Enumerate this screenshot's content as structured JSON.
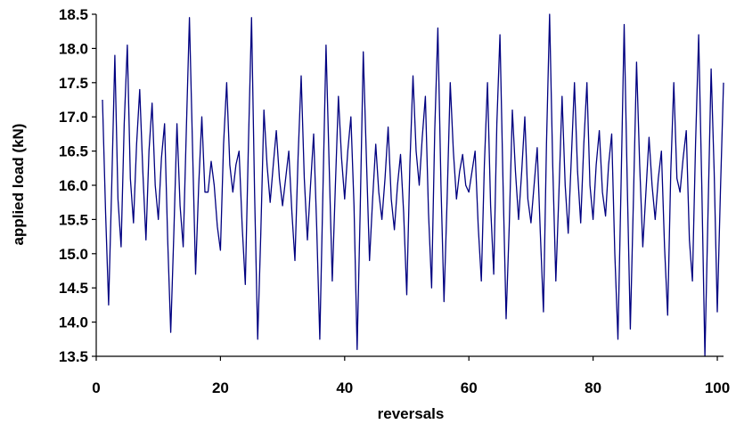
{
  "chart_data": {
    "type": "line",
    "title": "",
    "xlabel": "reversals",
    "ylabel": "applied load (kN)",
    "xlim": [
      0,
      101
    ],
    "ylim": [
      13.5,
      18.5
    ],
    "x_ticks": [
      0,
      20,
      40,
      60,
      80,
      100
    ],
    "x_tick_labels": [
      "0",
      "20",
      "40",
      "60",
      "80",
      "100"
    ],
    "y_ticks": [
      13.5,
      14.0,
      14.5,
      15.0,
      15.5,
      16.0,
      16.5,
      17.0,
      17.5,
      18.0,
      18.5
    ],
    "y_tick_labels": [
      "13.5",
      "14.0",
      "14.5",
      "15.0",
      "15.5",
      "16.0",
      "16.5",
      "17.0",
      "17.5",
      "18.0",
      "18.5"
    ],
    "grid": false,
    "legend": "none",
    "line_color": "#000080",
    "series": [
      {
        "values": [
          [
            1.0,
            17.25
          ],
          [
            1.5,
            15.6
          ],
          [
            2.0,
            14.25
          ],
          [
            2.5,
            16.0
          ],
          [
            3.0,
            17.9
          ],
          [
            3.5,
            15.8
          ],
          [
            4.0,
            15.1
          ],
          [
            4.5,
            16.9
          ],
          [
            5.0,
            18.05
          ],
          [
            5.5,
            16.1
          ],
          [
            6.0,
            15.45
          ],
          [
            6.5,
            16.6
          ],
          [
            7.0,
            17.4
          ],
          [
            7.5,
            16.2
          ],
          [
            8.0,
            15.2
          ],
          [
            8.5,
            16.5
          ],
          [
            9.0,
            17.2
          ],
          [
            9.5,
            16.0
          ],
          [
            10.0,
            15.5
          ],
          [
            10.5,
            16.4
          ],
          [
            11.0,
            16.9
          ],
          [
            11.5,
            15.2
          ],
          [
            12.0,
            13.85
          ],
          [
            12.5,
            15.3
          ],
          [
            13.0,
            16.9
          ],
          [
            13.5,
            15.7
          ],
          [
            14.0,
            15.1
          ],
          [
            14.5,
            16.8
          ],
          [
            15.0,
            18.45
          ],
          [
            15.5,
            16.6
          ],
          [
            16.0,
            14.7
          ],
          [
            16.5,
            16.0
          ],
          [
            17.0,
            17.0
          ],
          [
            17.5,
            15.9
          ],
          [
            18.0,
            15.9
          ],
          [
            18.5,
            16.35
          ],
          [
            19.0,
            16.0
          ],
          [
            19.5,
            15.4
          ],
          [
            20.0,
            15.05
          ],
          [
            20.5,
            16.6
          ],
          [
            21.0,
            17.5
          ],
          [
            21.5,
            16.3
          ],
          [
            22.0,
            15.9
          ],
          [
            22.5,
            16.3
          ],
          [
            23.0,
            16.5
          ],
          [
            23.5,
            15.4
          ],
          [
            24.0,
            14.55
          ],
          [
            24.5,
            16.6
          ],
          [
            25.0,
            18.45
          ],
          [
            25.5,
            15.9
          ],
          [
            26.0,
            13.75
          ],
          [
            26.5,
            15.3
          ],
          [
            27.0,
            17.1
          ],
          [
            27.5,
            16.3
          ],
          [
            28.0,
            15.75
          ],
          [
            28.5,
            16.3
          ],
          [
            29.0,
            16.8
          ],
          [
            29.5,
            16.1
          ],
          [
            30.0,
            15.7
          ],
          [
            30.5,
            16.1
          ],
          [
            31.0,
            16.5
          ],
          [
            31.5,
            15.6
          ],
          [
            32.0,
            14.9
          ],
          [
            32.5,
            16.4
          ],
          [
            33.0,
            17.6
          ],
          [
            33.5,
            16.1
          ],
          [
            34.0,
            15.2
          ],
          [
            34.5,
            16.0
          ],
          [
            35.0,
            16.75
          ],
          [
            35.5,
            15.4
          ],
          [
            36.0,
            13.75
          ],
          [
            36.5,
            15.9
          ],
          [
            37.0,
            18.05
          ],
          [
            37.5,
            16.3
          ],
          [
            38.0,
            14.6
          ],
          [
            38.5,
            16.0
          ],
          [
            39.0,
            17.3
          ],
          [
            39.5,
            16.4
          ],
          [
            40.0,
            15.8
          ],
          [
            40.5,
            16.5
          ],
          [
            41.0,
            17.0
          ],
          [
            41.5,
            15.7
          ],
          [
            42.0,
            13.6
          ],
          [
            42.5,
            15.6
          ],
          [
            43.0,
            17.95
          ],
          [
            43.5,
            16.4
          ],
          [
            44.0,
            14.9
          ],
          [
            44.5,
            15.8
          ],
          [
            45.0,
            16.6
          ],
          [
            45.5,
            15.9
          ],
          [
            46.0,
            15.5
          ],
          [
            46.5,
            16.1
          ],
          [
            47.0,
            16.85
          ],
          [
            47.5,
            15.8
          ],
          [
            48.0,
            15.35
          ],
          [
            48.5,
            16.0
          ],
          [
            49.0,
            16.45
          ],
          [
            49.5,
            15.6
          ],
          [
            50.0,
            14.4
          ],
          [
            50.5,
            16.3
          ],
          [
            51.0,
            17.6
          ],
          [
            51.5,
            16.5
          ],
          [
            52.0,
            16.0
          ],
          [
            52.5,
            16.7
          ],
          [
            53.0,
            17.3
          ],
          [
            53.5,
            15.6
          ],
          [
            54.0,
            14.5
          ],
          [
            54.5,
            16.8
          ],
          [
            55.0,
            18.3
          ],
          [
            55.5,
            16.0
          ],
          [
            56.0,
            14.3
          ],
          [
            56.5,
            15.8
          ],
          [
            57.0,
            17.5
          ],
          [
            57.5,
            16.5
          ],
          [
            58.0,
            15.8
          ],
          [
            58.5,
            16.2
          ],
          [
            59.0,
            16.45
          ],
          [
            59.5,
            16.0
          ],
          [
            60.0,
            15.9
          ],
          [
            60.5,
            16.2
          ],
          [
            61.0,
            16.5
          ],
          [
            61.5,
            15.4
          ],
          [
            62.0,
            14.6
          ],
          [
            62.5,
            16.3
          ],
          [
            63.0,
            17.5
          ],
          [
            63.5,
            15.7
          ],
          [
            64.0,
            14.7
          ],
          [
            64.5,
            16.9
          ],
          [
            65.0,
            18.2
          ],
          [
            65.5,
            16.0
          ],
          [
            66.0,
            14.05
          ],
          [
            66.5,
            15.4
          ],
          [
            67.0,
            17.1
          ],
          [
            67.5,
            16.2
          ],
          [
            68.0,
            15.5
          ],
          [
            68.5,
            16.2
          ],
          [
            69.0,
            17.0
          ],
          [
            69.5,
            15.8
          ],
          [
            70.0,
            15.45
          ],
          [
            70.5,
            16.0
          ],
          [
            71.0,
            16.55
          ],
          [
            71.5,
            15.3
          ],
          [
            72.0,
            14.15
          ],
          [
            72.5,
            16.6
          ],
          [
            73.0,
            18.5
          ],
          [
            73.5,
            16.3
          ],
          [
            74.0,
            14.6
          ],
          [
            74.5,
            15.9
          ],
          [
            75.0,
            17.3
          ],
          [
            75.5,
            16.0
          ],
          [
            76.0,
            15.3
          ],
          [
            76.5,
            16.4
          ],
          [
            77.0,
            17.5
          ],
          [
            77.5,
            16.2
          ],
          [
            78.0,
            15.45
          ],
          [
            78.5,
            16.6
          ],
          [
            79.0,
            17.5
          ],
          [
            79.5,
            16.0
          ],
          [
            80.0,
            15.5
          ],
          [
            80.5,
            16.3
          ],
          [
            81.0,
            16.8
          ],
          [
            81.5,
            15.9
          ],
          [
            82.0,
            15.55
          ],
          [
            82.5,
            16.3
          ],
          [
            83.0,
            16.75
          ],
          [
            83.5,
            15.0
          ],
          [
            84.0,
            13.75
          ],
          [
            84.5,
            16.0
          ],
          [
            85.0,
            18.35
          ],
          [
            85.5,
            16.0
          ],
          [
            86.0,
            13.9
          ],
          [
            86.5,
            15.8
          ],
          [
            87.0,
            17.8
          ],
          [
            87.5,
            16.3
          ],
          [
            88.0,
            15.1
          ],
          [
            88.5,
            15.9
          ],
          [
            89.0,
            16.7
          ],
          [
            89.5,
            16.0
          ],
          [
            90.0,
            15.5
          ],
          [
            90.5,
            16.1
          ],
          [
            91.0,
            16.5
          ],
          [
            91.5,
            15.1
          ],
          [
            92.0,
            14.1
          ],
          [
            92.5,
            16.2
          ],
          [
            93.0,
            17.5
          ],
          [
            93.5,
            16.1
          ],
          [
            94.0,
            15.9
          ],
          [
            94.5,
            16.4
          ],
          [
            95.0,
            16.8
          ],
          [
            95.5,
            15.2
          ],
          [
            96.0,
            14.6
          ],
          [
            96.5,
            16.6
          ],
          [
            97.0,
            18.2
          ],
          [
            97.5,
            16.0
          ],
          [
            98.0,
            13.5
          ],
          [
            98.5,
            15.6
          ],
          [
            99.0,
            17.7
          ],
          [
            99.5,
            16.2
          ],
          [
            100.0,
            14.15
          ],
          [
            100.5,
            15.9
          ],
          [
            101.0,
            17.5
          ]
        ]
      }
    ]
  }
}
